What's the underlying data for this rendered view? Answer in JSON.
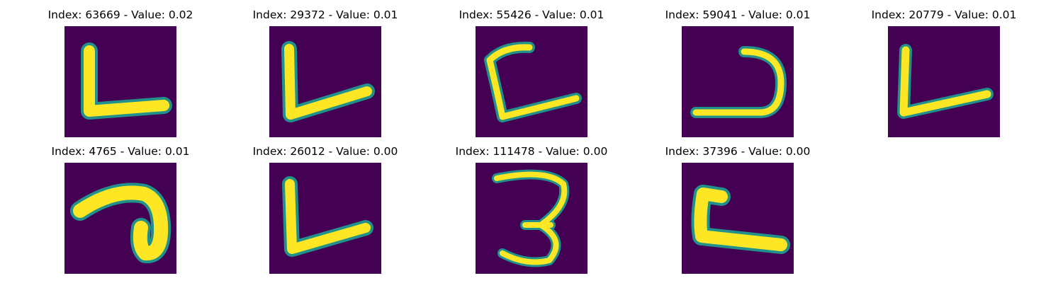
{
  "colors": {
    "background": "#440154",
    "stroke_core": "#fde725",
    "stroke_edge": "#21918c"
  },
  "panels": [
    {
      "title": "Index: 63669 - Value: 0.02",
      "glyph": "L-shape"
    },
    {
      "title": "Index: 29372 - Value: 0.01",
      "glyph": "check-shape"
    },
    {
      "title": "Index: 55426 - Value: 0.01",
      "glyph": "bracket-shape"
    },
    {
      "title": "Index: 59041 - Value: 0.01",
      "glyph": "reverse-j-shape"
    },
    {
      "title": "Index: 20779 - Value: 0.01",
      "glyph": "check-shape"
    },
    {
      "title": "Index: 4765 - Value: 0.01",
      "glyph": "hook-shape"
    },
    {
      "title": "Index: 26012 - Value: 0.00",
      "glyph": "check-shape"
    },
    {
      "title": "Index: 111478 - Value: 0.00",
      "glyph": "three-shape"
    },
    {
      "title": "Index: 37396 - Value: 0.00",
      "glyph": "L-shape"
    }
  ]
}
